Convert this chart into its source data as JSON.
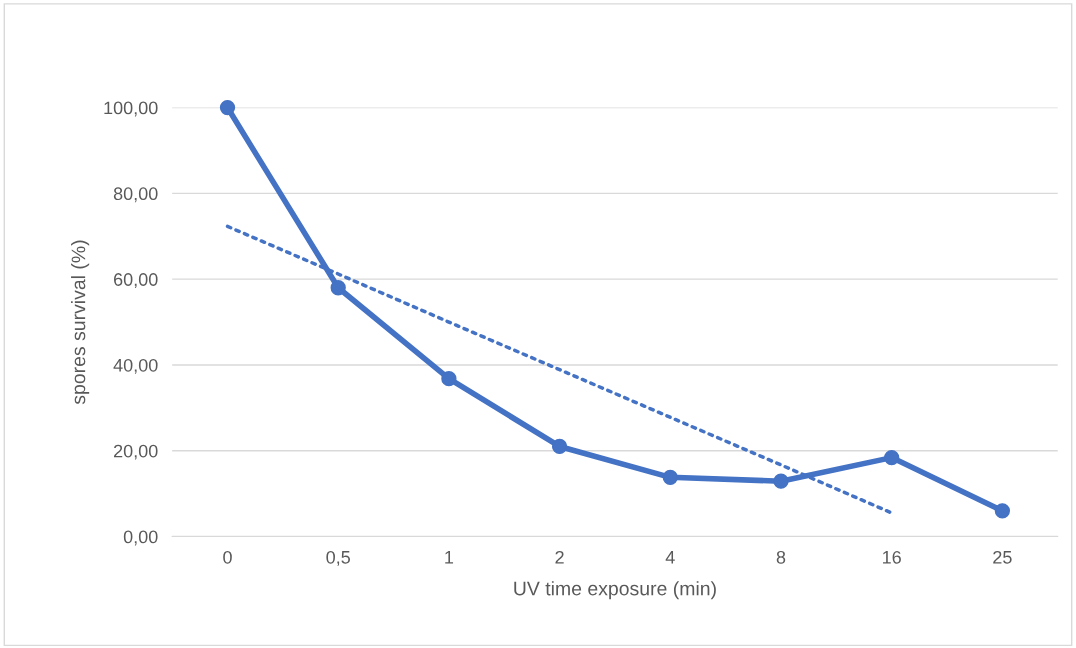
{
  "chart_data": {
    "type": "line",
    "xlabel": "UV time exposure (min)",
    "ylabel": "spores survival (%)",
    "categories": [
      "0",
      "0,5",
      "1",
      "2",
      "4",
      "8",
      "16",
      "25"
    ],
    "series": [
      {
        "color": "#4472c4",
        "values": [
          100,
          58,
          36.8,
          21,
          13.8,
          12.9,
          18.4,
          6.0
        ],
        "marker": "circle",
        "line_style": "solid"
      },
      {
        "type": "line",
        "color": "#4472c4",
        "values": [
          72.3,
          61.2,
          50.0,
          38.9,
          27.8,
          16.7,
          5.5,
          null
        ],
        "marker": "none",
        "line_style": "dotted"
      }
    ],
    "ylim": [
      0,
      100
    ],
    "yticks": [
      {
        "value": 0,
        "label": "0,00"
      },
      {
        "value": 20,
        "label": "20,00"
      },
      {
        "value": 40,
        "label": "40,00"
      },
      {
        "value": 60,
        "label": "60,00"
      },
      {
        "value": 80,
        "label": "80,00"
      },
      {
        "value": 100,
        "label": "100,00"
      }
    ],
    "grid": "y",
    "legend": false
  }
}
